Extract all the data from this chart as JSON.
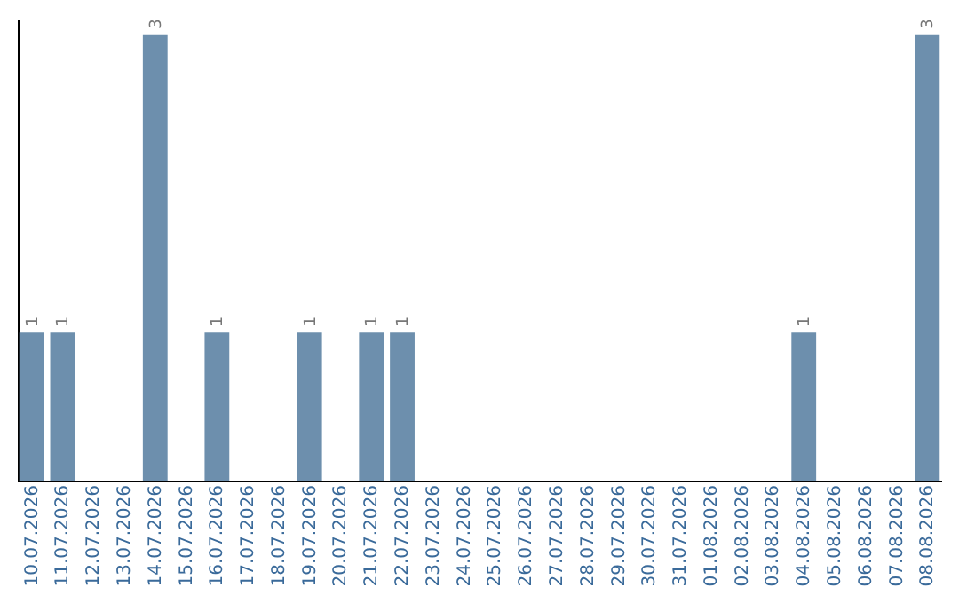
{
  "chart_data": {
    "type": "bar",
    "categories": [
      "10.07.2026",
      "11.07.2026",
      "12.07.2026",
      "13.07.2026",
      "14.07.2026",
      "15.07.2026",
      "16.07.2026",
      "17.07.2026",
      "18.07.2026",
      "19.07.2026",
      "20.07.2026",
      "21.07.2026",
      "22.07.2026",
      "23.07.2026",
      "24.07.2026",
      "25.07.2026",
      "26.07.2026",
      "27.07.2026",
      "28.07.2026",
      "29.07.2026",
      "30.07.2026",
      "31.07.2026",
      "01.08.2026",
      "02.08.2026",
      "03.08.2026",
      "04.08.2026",
      "05.08.2026",
      "06.08.2026",
      "07.08.2026",
      "08.08.2026"
    ],
    "values": [
      1,
      1,
      0,
      0,
      3,
      0,
      1,
      0,
      0,
      1,
      0,
      1,
      1,
      0,
      0,
      0,
      0,
      0,
      0,
      0,
      0,
      0,
      0,
      0,
      0,
      1,
      0,
      0,
      0,
      3
    ],
    "value_labels": [
      "1",
      "1",
      null,
      null,
      "3",
      null,
      "1",
      null,
      null,
      "1",
      null,
      "1",
      "1",
      null,
      null,
      null,
      null,
      null,
      null,
      null,
      null,
      null,
      null,
      null,
      null,
      "1",
      null,
      null,
      null,
      "3"
    ],
    "color": "#6d8fad",
    "ylim": [
      0,
      3.1
    ],
    "tick_labels": "x",
    "grid": false
  }
}
